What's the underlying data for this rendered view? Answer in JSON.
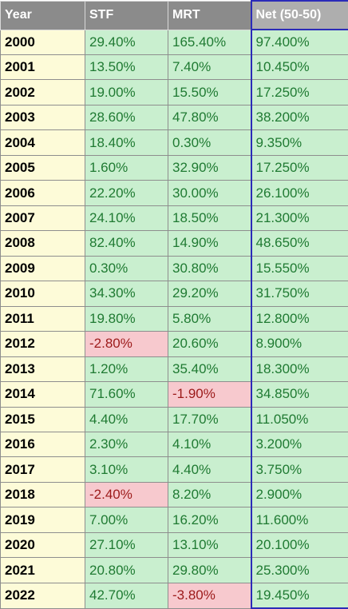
{
  "table": {
    "headers": [
      "Year",
      "STF",
      "MRT",
      "Net (50-50)"
    ],
    "rows": [
      {
        "year": "2000",
        "stf": "29.40%",
        "mrt": "165.40%",
        "net": "97.400%"
      },
      {
        "year": "2001",
        "stf": "13.50%",
        "mrt": "7.40%",
        "net": "10.450%"
      },
      {
        "year": "2002",
        "stf": "19.00%",
        "mrt": "15.50%",
        "net": "17.250%"
      },
      {
        "year": "2003",
        "stf": "28.60%",
        "mrt": "47.80%",
        "net": "38.200%"
      },
      {
        "year": "2004",
        "stf": "18.40%",
        "mrt": "0.30%",
        "net": "9.350%"
      },
      {
        "year": "2005",
        "stf": "1.60%",
        "mrt": "32.90%",
        "net": "17.250%"
      },
      {
        "year": "2006",
        "stf": "22.20%",
        "mrt": "30.00%",
        "net": "26.100%"
      },
      {
        "year": "2007",
        "stf": "24.10%",
        "mrt": "18.50%",
        "net": "21.300%"
      },
      {
        "year": "2008",
        "stf": "82.40%",
        "mrt": "14.90%",
        "net": "48.650%"
      },
      {
        "year": "2009",
        "stf": "0.30%",
        "mrt": "30.80%",
        "net": "15.550%"
      },
      {
        "year": "2010",
        "stf": "34.30%",
        "mrt": "29.20%",
        "net": "31.750%"
      },
      {
        "year": "2011",
        "stf": "19.80%",
        "mrt": "5.80%",
        "net": "12.800%"
      },
      {
        "year": "2012",
        "stf": "-2.80%",
        "mrt": "20.60%",
        "net": "8.900%"
      },
      {
        "year": "2013",
        "stf": "1.20%",
        "mrt": "35.40%",
        "net": "18.300%"
      },
      {
        "year": "2014",
        "stf": "71.60%",
        "mrt": "-1.90%",
        "net": "34.850%"
      },
      {
        "year": "2015",
        "stf": "4.40%",
        "mrt": "17.70%",
        "net": "11.050%"
      },
      {
        "year": "2016",
        "stf": "2.30%",
        "mrt": "4.10%",
        "net": "3.200%"
      },
      {
        "year": "2017",
        "stf": "3.10%",
        "mrt": "4.40%",
        "net": "3.750%"
      },
      {
        "year": "2018",
        "stf": "-2.40%",
        "mrt": "8.20%",
        "net": "2.900%"
      },
      {
        "year": "2019",
        "stf": "7.00%",
        "mrt": "16.20%",
        "net": "11.600%"
      },
      {
        "year": "2020",
        "stf": "27.10%",
        "mrt": "13.10%",
        "net": "20.100%"
      },
      {
        "year": "2021",
        "stf": "20.80%",
        "mrt": "29.80%",
        "net": "25.300%"
      },
      {
        "year": "2022",
        "stf": "42.70%",
        "mrt": "-3.80%",
        "net": "19.450%"
      }
    ]
  },
  "colors": {
    "header_bg": "#8b8b8b",
    "positive_bg": "#c9efcf",
    "positive_text": "#1f7a32",
    "negative_bg": "#f7c9ce",
    "negative_text": "#9c1a1a",
    "year_bg": "#fdfbd8",
    "selection_border": "#2b2bb8"
  }
}
